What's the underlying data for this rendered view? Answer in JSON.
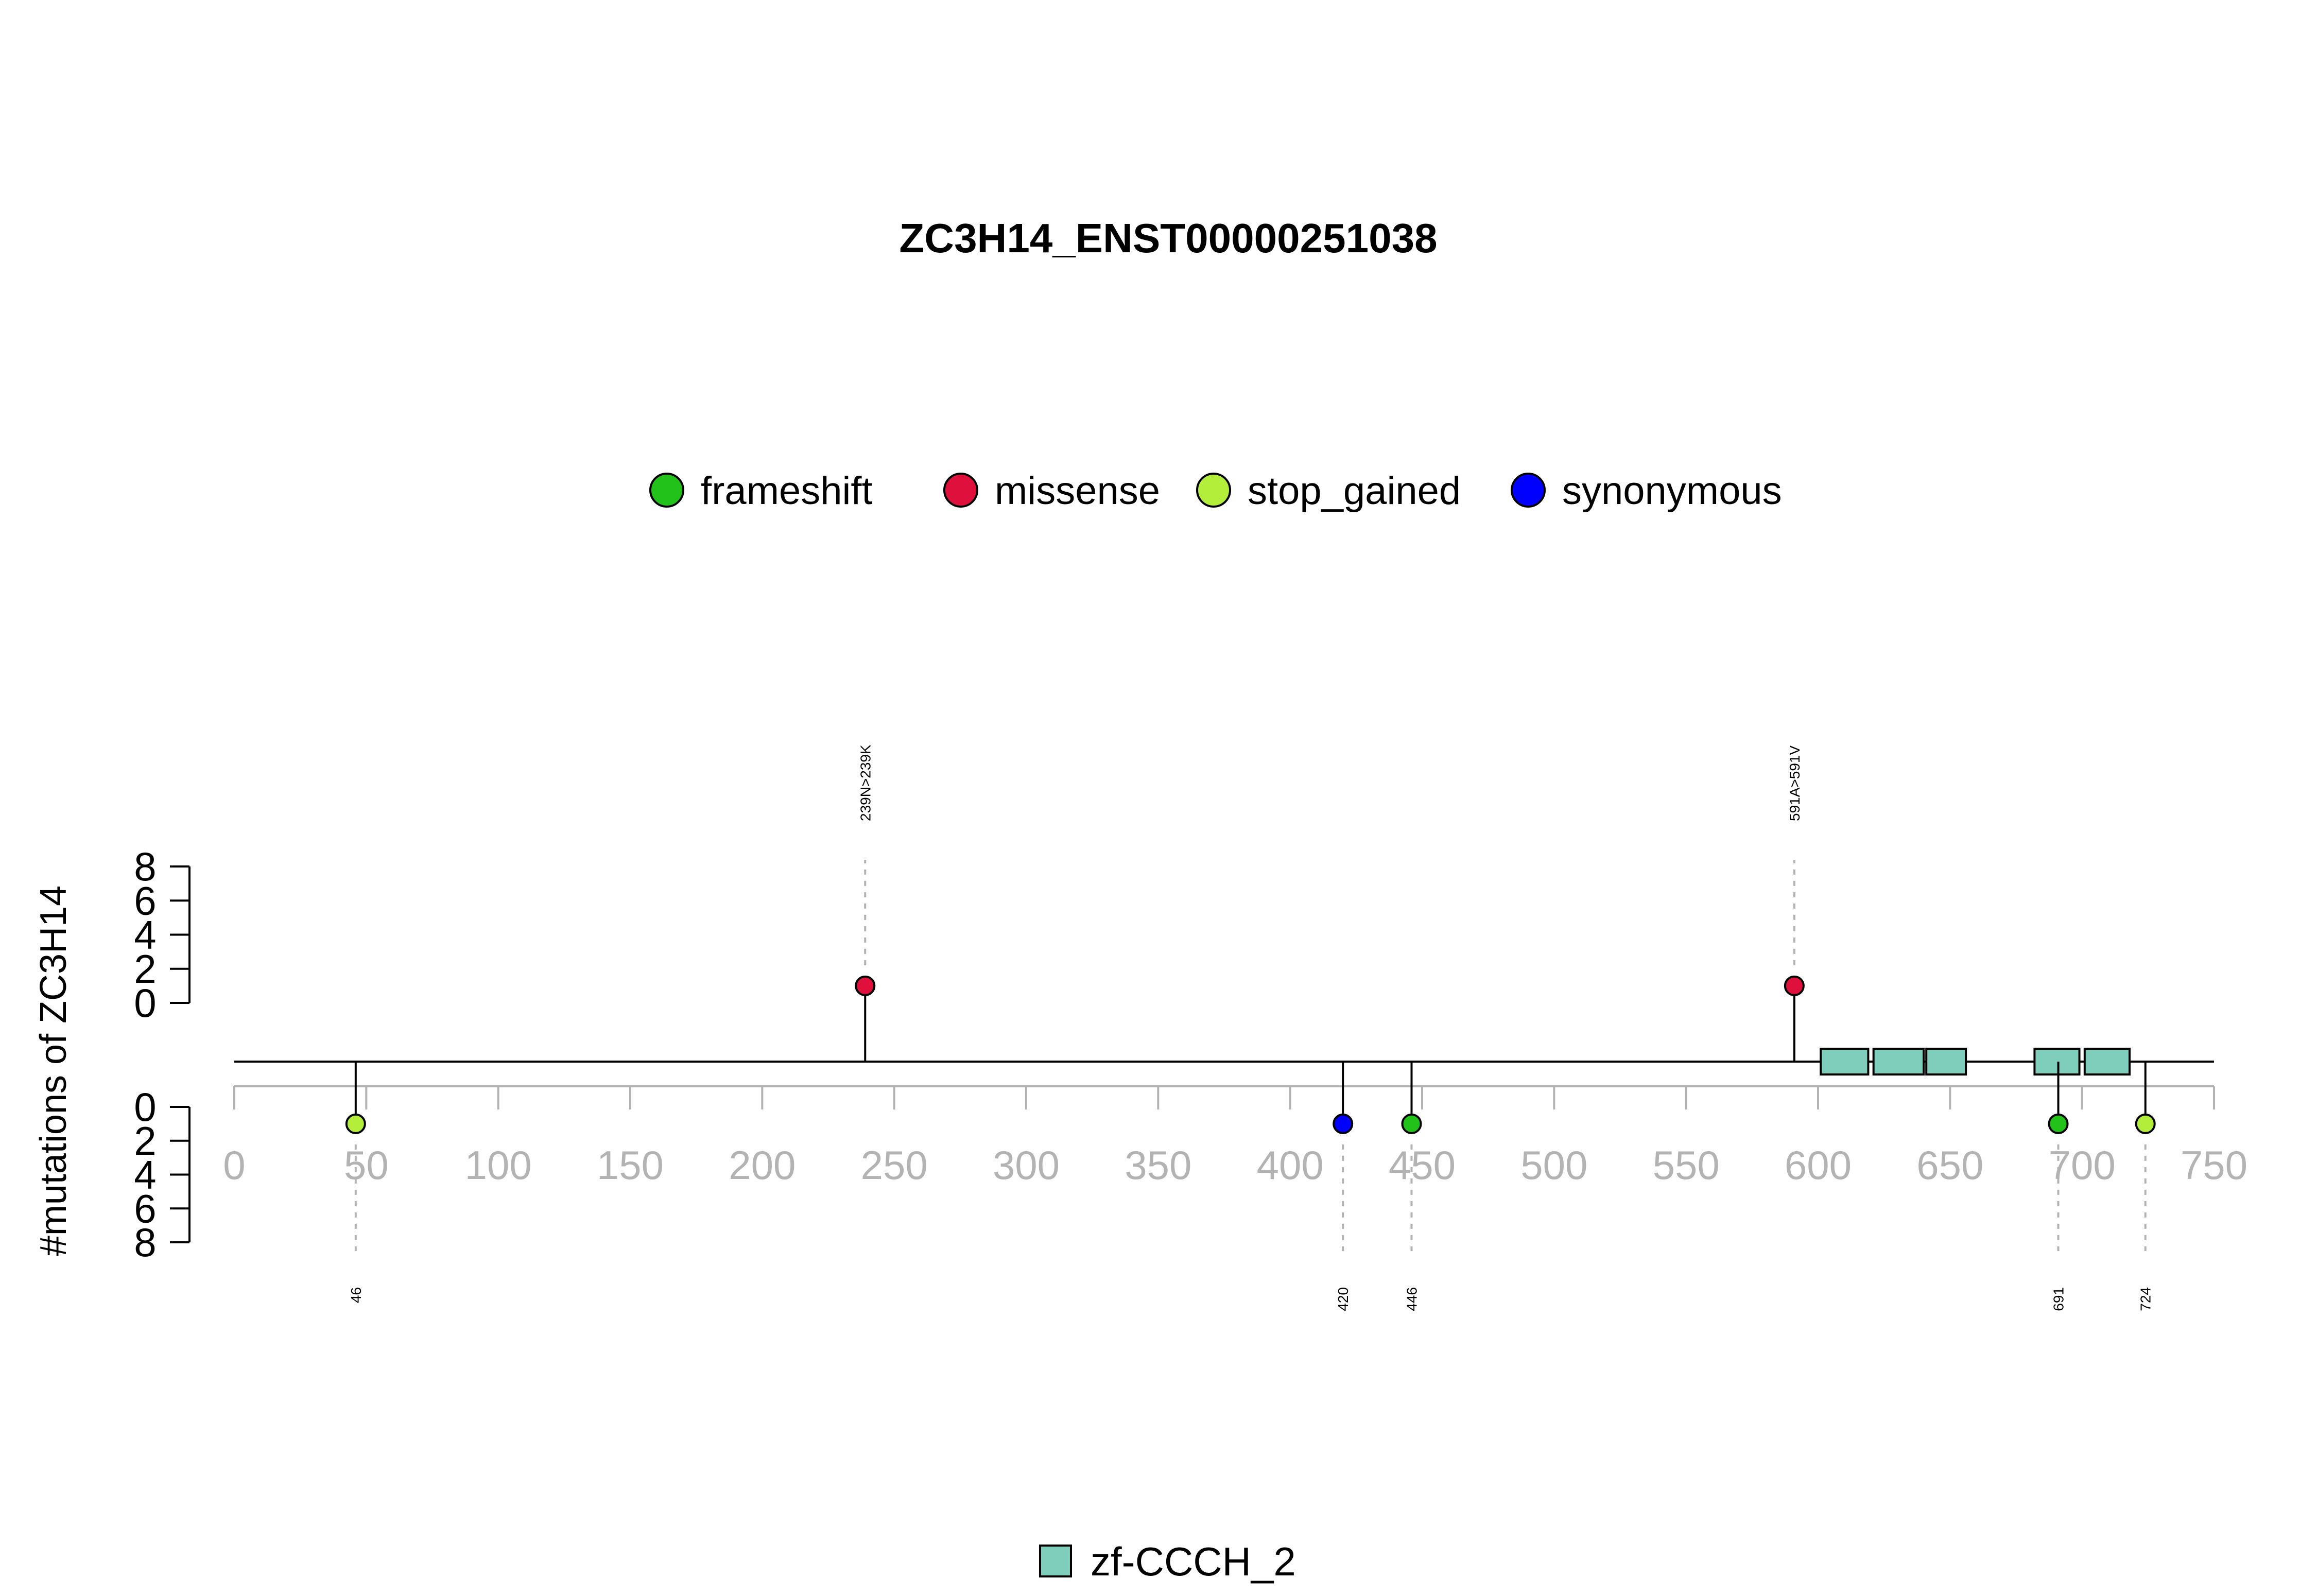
{
  "chart_data": {
    "type": "lollipop",
    "title": "ZC3H14_ENST00000251038",
    "ylabel": "#mutations of ZC3H14",
    "xlim": [
      0,
      750
    ],
    "x_ticks": [
      0,
      50,
      100,
      150,
      200,
      250,
      300,
      350,
      400,
      450,
      500,
      550,
      600,
      650,
      700,
      750
    ],
    "y_ticks": [
      0,
      2,
      4,
      6,
      8
    ],
    "ylim_top": [
      0,
      8
    ],
    "ylim_bottom": [
      0,
      8
    ],
    "legend_placement": "top-center",
    "legend": [
      {
        "name": "frameshift",
        "color": "#22c21a"
      },
      {
        "name": "missense",
        "color": "#e0103c"
      },
      {
        "name": "stop_gained",
        "color": "#b2ee3a"
      },
      {
        "name": "synonymous",
        "color": "#0000ff"
      }
    ],
    "mutations_top": [
      {
        "pos": 239,
        "count": 1,
        "type": "missense",
        "label": "239N>239K"
      },
      {
        "pos": 591,
        "count": 1,
        "type": "missense",
        "label": "591A>591V"
      }
    ],
    "mutations_bottom": [
      {
        "pos": 46,
        "count": 1,
        "type": "stop_gained",
        "label": "46"
      },
      {
        "pos": 420,
        "count": 1,
        "type": "synonymous",
        "label": "420"
      },
      {
        "pos": 446,
        "count": 1,
        "type": "frameshift",
        "label": "446"
      },
      {
        "pos": 691,
        "count": 1,
        "type": "frameshift",
        "label": "691"
      },
      {
        "pos": 724,
        "count": 1,
        "type": "stop_gained",
        "label": "724"
      }
    ],
    "domains": [
      {
        "name": "zf-CCCH_2",
        "start": 601,
        "end": 619
      },
      {
        "name": "zf-CCCH_2",
        "start": 621,
        "end": 640
      },
      {
        "name": "zf-CCCH_2",
        "start": 641,
        "end": 656
      },
      {
        "name": "zf-CCCH_2",
        "start": 682,
        "end": 699
      },
      {
        "name": "zf-CCCH_2",
        "start": 701,
        "end": 718
      }
    ],
    "domain_legend": [
      {
        "name": "zf-CCCH_2",
        "color": "#7fcdbb"
      }
    ]
  }
}
